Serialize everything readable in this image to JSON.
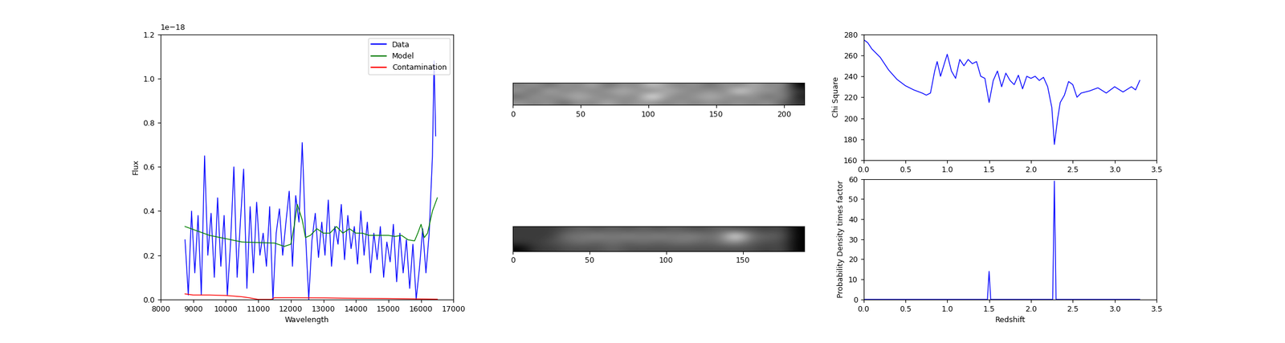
{
  "chart_data": [
    {
      "type": "line",
      "x_label": "Wavelength",
      "y_label": "Flux",
      "annotations": [
        "1e−18"
      ],
      "legend": "upper right",
      "xlim": [
        8000,
        17000
      ],
      "xticks": [
        8000,
        9000,
        10000,
        11000,
        12000,
        13000,
        14000,
        15000,
        16000,
        17000
      ],
      "ylim": [
        0,
        1.2
      ],
      "yticks": [
        {
          "value": 0.0,
          "label": "0.0"
        },
        {
          "value": 0.2,
          "label": "0.2"
        },
        {
          "value": 0.4,
          "label": "0.4"
        },
        {
          "value": 0.6,
          "label": "0.6"
        },
        {
          "value": 0.8,
          "label": "0.8"
        },
        {
          "value": 1.0,
          "label": "1.0"
        },
        {
          "value": 1.2,
          "label": "1.2"
        }
      ],
      "series": [
        {
          "name": "Data",
          "color": "#0000ff",
          "x": [
            8750,
            8850,
            8950,
            9050,
            9150,
            9250,
            9350,
            9450,
            9550,
            9650,
            9750,
            9850,
            9950,
            10050,
            10150,
            10250,
            10350,
            10450,
            10550,
            10650,
            10750,
            10850,
            10950,
            11050,
            11150,
            11250,
            11350,
            11450,
            11550,
            11650,
            11750,
            11850,
            11950,
            12050,
            12150,
            12250,
            12350,
            12450,
            12550,
            12650,
            12750,
            12850,
            12950,
            13050,
            13150,
            13250,
            13350,
            13450,
            13550,
            13650,
            13750,
            13850,
            13950,
            14050,
            14150,
            14250,
            14350,
            14450,
            14550,
            14650,
            14750,
            14850,
            14950,
            15050,
            15150,
            15250,
            15350,
            15450,
            15550,
            15650,
            15750,
            15850,
            15950,
            16050,
            16150,
            16250,
            16350,
            16400,
            16450
          ],
          "values": [
            0.27,
            0.02,
            0.4,
            0.12,
            0.38,
            0.02,
            0.65,
            0.2,
            0.39,
            0.1,
            0.46,
            0.15,
            0.38,
            0.02,
            0.26,
            0.6,
            0.1,
            0.35,
            0.59,
            0.05,
            0.42,
            0.12,
            0.44,
            0.2,
            0.3,
            0.15,
            0.42,
            0.0,
            0.3,
            0.41,
            0.2,
            0.35,
            0.49,
            0.15,
            0.47,
            0.35,
            0.71,
            0.3,
            0.0,
            0.27,
            0.39,
            0.19,
            0.35,
            0.2,
            0.45,
            0.15,
            0.33,
            0.25,
            0.43,
            0.18,
            0.38,
            0.23,
            0.33,
            0.16,
            0.4,
            0.2,
            0.35,
            0.12,
            0.3,
            0.18,
            0.33,
            0.1,
            0.26,
            0.17,
            0.34,
            0.08,
            0.3,
            0.12,
            0.27,
            0.05,
            0.25,
            0.0,
            0.14,
            0.32,
            0.12,
            0.3,
            0.65,
            1.08,
            0.74
          ]
        },
        {
          "name": "Model",
          "color": "#008000",
          "x": [
            8750,
            9500,
            10500,
            11500,
            11800,
            12000,
            12100,
            12200,
            12350,
            12450,
            12600,
            12800,
            13000,
            13200,
            13400,
            13600,
            13800,
            14000,
            14200,
            14400,
            14600,
            15000,
            15200,
            15400,
            15600,
            15800,
            15900,
            16000,
            16100,
            16200,
            16350,
            16500
          ],
          "values": [
            0.33,
            0.29,
            0.26,
            0.255,
            0.24,
            0.25,
            0.33,
            0.43,
            0.36,
            0.28,
            0.29,
            0.32,
            0.3,
            0.3,
            0.33,
            0.3,
            0.32,
            0.3,
            0.3,
            0.29,
            0.29,
            0.29,
            0.285,
            0.29,
            0.27,
            0.265,
            0.3,
            0.34,
            0.28,
            0.3,
            0.4,
            0.46
          ]
        },
        {
          "name": "Contamination",
          "color": "#ff0000",
          "x": [
            8750,
            9000,
            9500,
            10000,
            10500,
            10700,
            11000,
            11400,
            11500,
            12000,
            13000,
            14000,
            15000,
            16000,
            16500
          ],
          "values": [
            0.025,
            0.02,
            0.02,
            0.018,
            0.012,
            0.008,
            0.0,
            0.0,
            0.008,
            0.008,
            0.007,
            0.005,
            0.004,
            0.002,
            0.001
          ]
        }
      ]
    },
    {
      "type": "image",
      "tick_labels": "x",
      "xlim": [
        0,
        215
      ],
      "xticks": [
        0,
        50,
        100,
        150,
        200
      ],
      "cells": [
        [
          0.45,
          0.5,
          0.4,
          0.5,
          0.45,
          0.55,
          0.4,
          0.5,
          0.45,
          0.6,
          0.5,
          0.45,
          0.5,
          0.4,
          0.5,
          0.45,
          0.55,
          0.45,
          0.5,
          0.2
        ],
        [
          0.5,
          0.4,
          0.55,
          0.45,
          0.5,
          0.45,
          0.5,
          0.55,
          0.5,
          0.45,
          0.55,
          0.5,
          0.45,
          0.5,
          0.45,
          0.65,
          0.5,
          0.5,
          0.45,
          0.3
        ],
        [
          0.4,
          0.5,
          0.45,
          0.5,
          0.55,
          0.5,
          0.45,
          0.5,
          0.45,
          0.7,
          0.5,
          0.45,
          0.5,
          0.55,
          0.5,
          0.45,
          0.5,
          0.4,
          0.5,
          0.25
        ],
        [
          0.5,
          0.45,
          0.5,
          0.4,
          0.5,
          0.45,
          0.55,
          0.45,
          0.5,
          0.5,
          0.45,
          0.5,
          0.45,
          0.5,
          0.45,
          0.5,
          0.45,
          0.5,
          0.4,
          0.3
        ]
      ]
    },
    {
      "type": "image",
      "tick_labels": "x",
      "xlim": [
        0,
        190
      ],
      "xticks": [
        0,
        50,
        100,
        150
      ],
      "cells": [
        [
          0.45,
          0.45,
          0.45,
          0.5,
          0.55,
          0.5,
          0.55,
          0.5,
          0.55,
          0.5,
          0.55,
          0.5,
          0.5,
          0.55,
          0.5,
          0.5,
          0.45,
          0.5,
          0.3
        ],
        [
          0.45,
          0.45,
          0.45,
          0.6,
          0.6,
          0.65,
          0.6,
          0.65,
          0.6,
          0.65,
          0.6,
          0.65,
          0.6,
          0.6,
          0.95,
          0.6,
          0.55,
          0.55,
          0.3
        ],
        [
          0.45,
          0.45,
          0.5,
          0.55,
          0.6,
          0.55,
          0.6,
          0.55,
          0.6,
          0.55,
          0.6,
          0.6,
          0.55,
          0.6,
          0.7,
          0.55,
          0.5,
          0.5,
          0.3
        ],
        [
          0.3,
          0.45,
          0.45,
          0.5,
          0.5,
          0.5,
          0.55,
          0.5,
          0.5,
          0.5,
          0.5,
          0.5,
          0.5,
          0.5,
          0.5,
          0.5,
          0.45,
          0.5,
          0.3
        ]
      ]
    },
    {
      "type": "line",
      "y_label": "Chi Square",
      "xlim": [
        0,
        3.5
      ],
      "xticks": [
        {
          "value": 0,
          "label": "0.0"
        },
        {
          "value": 0.5,
          "label": "0.5"
        },
        {
          "value": 1.0,
          "label": "1.0"
        },
        {
          "value": 1.5,
          "label": "1.5"
        },
        {
          "value": 2.0,
          "label": "2.0"
        },
        {
          "value": 2.5,
          "label": "2.5"
        },
        {
          "value": 3.0,
          "label": "3.0"
        },
        {
          "value": 3.5,
          "label": "3.5"
        }
      ],
      "ylim": [
        160,
        280
      ],
      "yticks": [
        160,
        180,
        200,
        220,
        240,
        260,
        280
      ],
      "series": [
        {
          "color": "#0000ff",
          "x": [
            0,
            0.05,
            0.1,
            0.2,
            0.3,
            0.4,
            0.5,
            0.6,
            0.7,
            0.75,
            0.8,
            0.85,
            0.88,
            0.92,
            0.95,
            1.0,
            1.05,
            1.1,
            1.15,
            1.2,
            1.25,
            1.3,
            1.35,
            1.4,
            1.45,
            1.5,
            1.55,
            1.6,
            1.65,
            1.7,
            1.75,
            1.8,
            1.85,
            1.9,
            1.95,
            2.0,
            2.05,
            2.1,
            2.15,
            2.2,
            2.25,
            2.28,
            2.32,
            2.35,
            2.4,
            2.45,
            2.5,
            2.55,
            2.6,
            2.7,
            2.8,
            2.9,
            3.0,
            3.1,
            3.2,
            3.25,
            3.3
          ],
          "values": [
            275,
            272,
            266,
            258,
            246,
            237,
            231,
            227,
            224,
            222,
            224,
            245,
            254,
            240,
            248,
            261,
            245,
            238,
            256,
            250,
            256,
            252,
            254,
            240,
            238,
            215,
            236,
            245,
            230,
            243,
            236,
            232,
            241,
            228,
            240,
            238,
            240,
            236,
            239,
            230,
            210,
            175,
            200,
            215,
            222,
            235,
            232,
            220,
            224,
            226,
            229,
            224,
            230,
            225,
            230,
            227,
            236
          ]
        }
      ]
    },
    {
      "type": "line",
      "x_label": "Redshift",
      "y_label": "Probability Density times factor",
      "xlim": [
        0,
        3.5
      ],
      "xticks": [
        {
          "value": 0,
          "label": "0.0"
        },
        {
          "value": 0.5,
          "label": "0.5"
        },
        {
          "value": 1.0,
          "label": "1.0"
        },
        {
          "value": 1.5,
          "label": "1.5"
        },
        {
          "value": 2.0,
          "label": "2.0"
        },
        {
          "value": 2.5,
          "label": "2.5"
        },
        {
          "value": 3.0,
          "label": "3.0"
        },
        {
          "value": 3.5,
          "label": "3.5"
        }
      ],
      "ylim": [
        0,
        60
      ],
      "yticks": [
        0,
        10,
        20,
        30,
        40,
        50,
        60
      ],
      "series": [
        {
          "color": "#0000ff",
          "x": [
            0,
            1.48,
            1.5,
            1.52,
            2.26,
            2.28,
            2.3,
            3.3
          ],
          "values": [
            0,
            0,
            14,
            0,
            0,
            59,
            0,
            0
          ]
        }
      ]
    }
  ]
}
